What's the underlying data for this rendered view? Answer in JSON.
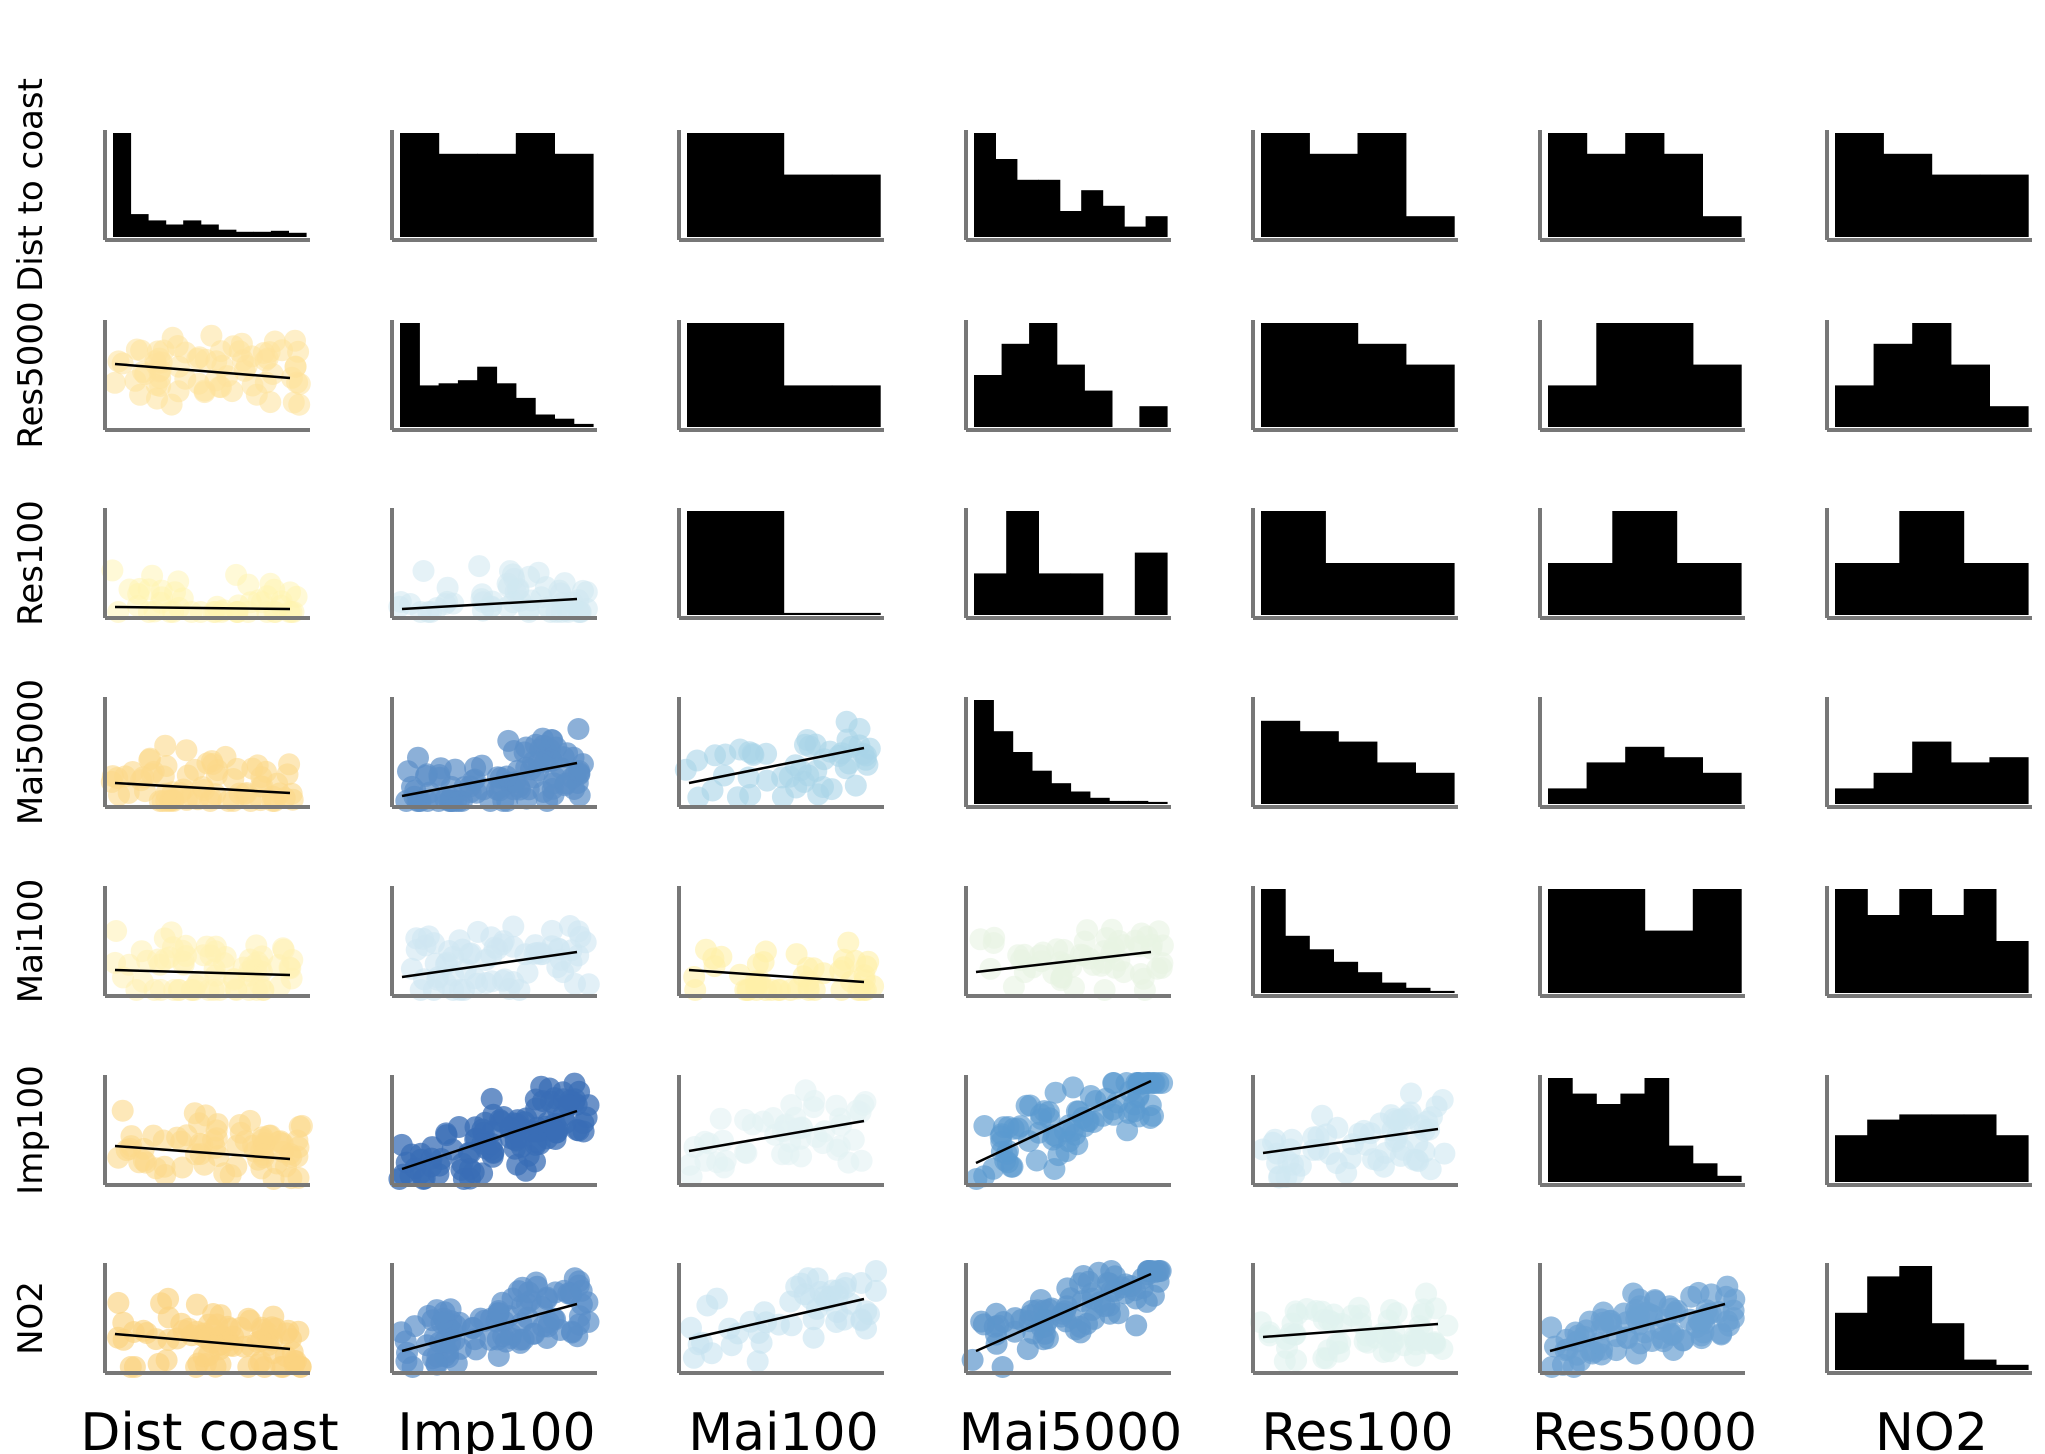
{
  "chart_data": {
    "type": "scatter-matrix",
    "variables": [
      "Dist coast",
      "Imp100",
      "Mai100",
      "Mai5000",
      "Res100",
      "Res5000",
      "NO2"
    ],
    "row_labels": [
      "Dist to coast",
      "Res5000",
      "Res100",
      "Mai5000",
      "Mai100",
      "Imp100",
      "NO2"
    ],
    "col_labels": [
      "Dist coast",
      "Imp100",
      "Mai100",
      "Mai5000",
      "Res100",
      "Res5000",
      "NO2"
    ],
    "histogram_color": "#000000",
    "trend_line_color": "#000000",
    "axis_color": "#777777",
    "histograms": [
      {
        "row": 0,
        "col": 0,
        "counts": [
          1.0,
          0.22,
          0.16,
          0.12,
          0.16,
          0.12,
          0.07,
          0.05,
          0.05,
          0.06,
          0.04
        ]
      },
      {
        "row": 0,
        "col": 1,
        "counts": [
          1.0,
          0.8,
          0.8,
          1.0,
          0.8
        ]
      },
      {
        "row": 0,
        "col": 2,
        "counts": [
          1.0,
          1.0,
          0.6,
          0.6
        ]
      },
      {
        "row": 0,
        "col": 3,
        "counts": [
          1.0,
          0.75,
          0.55,
          0.55,
          0.25,
          0.45,
          0.3,
          0.1,
          0.2
        ]
      },
      {
        "row": 0,
        "col": 4,
        "counts": [
          1.0,
          0.8,
          1.0,
          0.2
        ]
      },
      {
        "row": 0,
        "col": 5,
        "counts": [
          1.0,
          0.8,
          1.0,
          0.8,
          0.2
        ]
      },
      {
        "row": 0,
        "col": 6,
        "counts": [
          1.0,
          0.8,
          0.6,
          0.6
        ]
      },
      {
        "row": 1,
        "col": 1,
        "counts": [
          1.0,
          0.4,
          0.42,
          0.45,
          0.58,
          0.42,
          0.28,
          0.12,
          0.08,
          0.03
        ]
      },
      {
        "row": 1,
        "col": 2,
        "counts": [
          1.0,
          1.0,
          0.4,
          0.4
        ]
      },
      {
        "row": 1,
        "col": 3,
        "counts": [
          0.5,
          0.8,
          1.0,
          0.6,
          0.35,
          0.0,
          0.2
        ]
      },
      {
        "row": 1,
        "col": 4,
        "counts": [
          1.0,
          1.0,
          0.8,
          0.6
        ]
      },
      {
        "row": 1,
        "col": 5,
        "counts": [
          0.4,
          1.0,
          1.0,
          0.6
        ]
      },
      {
        "row": 1,
        "col": 6,
        "counts": [
          0.4,
          0.8,
          1.0,
          0.6,
          0.2
        ]
      },
      {
        "row": 2,
        "col": 2,
        "counts": [
          1.0,
          1.0,
          0.02,
          0.02
        ]
      },
      {
        "row": 2,
        "col": 3,
        "counts": [
          0.4,
          1.0,
          0.4,
          0.4,
          0.0,
          0.6
        ]
      },
      {
        "row": 2,
        "col": 4,
        "counts": [
          1.0,
          0.5,
          0.5
        ]
      },
      {
        "row": 2,
        "col": 5,
        "counts": [
          0.5,
          1.0,
          0.5
        ]
      },
      {
        "row": 2,
        "col": 6,
        "counts": [
          0.5,
          1.0,
          0.5
        ]
      },
      {
        "row": 3,
        "col": 3,
        "counts": [
          1.0,
          0.7,
          0.5,
          0.32,
          0.2,
          0.12,
          0.06,
          0.03,
          0.03,
          0.02
        ]
      },
      {
        "row": 3,
        "col": 4,
        "counts": [
          0.8,
          0.7,
          0.6,
          0.4,
          0.3
        ]
      },
      {
        "row": 3,
        "col": 5,
        "counts": [
          0.15,
          0.4,
          0.55,
          0.45,
          0.3
        ]
      },
      {
        "row": 3,
        "col": 6,
        "counts": [
          0.15,
          0.3,
          0.6,
          0.4,
          0.45
        ]
      },
      {
        "row": 4,
        "col": 4,
        "counts": [
          1.0,
          0.55,
          0.42,
          0.3,
          0.2,
          0.1,
          0.05,
          0.02
        ]
      },
      {
        "row": 4,
        "col": 5,
        "counts": [
          1.0,
          1.0,
          0.6,
          1.0
        ]
      },
      {
        "row": 4,
        "col": 6,
        "counts": [
          1.0,
          0.75,
          1.0,
          0.75,
          1.0,
          0.5
        ]
      },
      {
        "row": 5,
        "col": 5,
        "counts": [
          1.0,
          0.85,
          0.75,
          0.85,
          1.0,
          0.35,
          0.18,
          0.06
        ]
      },
      {
        "row": 5,
        "col": 6,
        "counts": [
          0.45,
          0.6,
          0.65,
          0.65,
          0.65,
          0.45
        ]
      },
      {
        "row": 6,
        "col": 6,
        "counts": [
          0.55,
          0.9,
          1.0,
          0.45,
          0.1,
          0.05
        ]
      }
    ],
    "scatters": [
      {
        "row": 1,
        "col": 0,
        "color": "#fde29a",
        "opacity": 0.55,
        "density": 1.0,
        "trend": [
          0.62,
          0.48
        ]
      },
      {
        "row": 2,
        "col": 0,
        "color": "#fff3b0",
        "opacity": 0.5,
        "density": 0.7,
        "trend": [
          0.07,
          0.05
        ]
      },
      {
        "row": 2,
        "col": 1,
        "color": "#cfe8f0",
        "opacity": 0.55,
        "density": 0.8,
        "trend": [
          0.05,
          0.15
        ]
      },
      {
        "row": 3,
        "col": 0,
        "color": "#fbd98a",
        "opacity": 0.6,
        "density": 1.0,
        "trend": [
          0.2,
          0.1
        ]
      },
      {
        "row": 3,
        "col": 1,
        "color": "#5b8fc8",
        "opacity": 0.7,
        "density": 1.4,
        "trend": [
          0.07,
          0.4
        ]
      },
      {
        "row": 3,
        "col": 2,
        "color": "#a9d3e8",
        "opacity": 0.6,
        "density": 0.7,
        "trend": [
          0.2,
          0.55
        ]
      },
      {
        "row": 4,
        "col": 0,
        "color": "#fff0b3",
        "opacity": 0.55,
        "density": 1.0,
        "trend": [
          0.22,
          0.17
        ]
      },
      {
        "row": 4,
        "col": 1,
        "color": "#cfe6f2",
        "opacity": 0.6,
        "density": 1.0,
        "trend": [
          0.15,
          0.4
        ]
      },
      {
        "row": 4,
        "col": 2,
        "color": "#fff0a8",
        "opacity": 0.6,
        "density": 0.7,
        "trend": [
          0.22,
          0.1
        ]
      },
      {
        "row": 4,
        "col": 3,
        "color": "#e7f4e2",
        "opacity": 0.6,
        "density": 0.8,
        "trend": [
          0.2,
          0.4
        ]
      },
      {
        "row": 5,
        "col": 0,
        "color": "#fbd98a",
        "opacity": 0.6,
        "density": 1.0,
        "trend": [
          0.35,
          0.22
        ]
      },
      {
        "row": 5,
        "col": 1,
        "color": "#3a6db5",
        "opacity": 0.75,
        "density": 1.6,
        "trend": [
          0.12,
          0.7
        ]
      },
      {
        "row": 5,
        "col": 2,
        "color": "#e2f2f4",
        "opacity": 0.6,
        "density": 0.7,
        "trend": [
          0.3,
          0.6
        ]
      },
      {
        "row": 5,
        "col": 3,
        "color": "#5b9ad0",
        "opacity": 0.65,
        "density": 1.2,
        "trend": [
          0.18,
          1.0
        ]
      },
      {
        "row": 5,
        "col": 4,
        "color": "#cfe8f2",
        "opacity": 0.6,
        "density": 0.9,
        "trend": [
          0.28,
          0.52
        ]
      },
      {
        "row": 6,
        "col": 0,
        "color": "#fbd37f",
        "opacity": 0.65,
        "density": 1.2,
        "trend": [
          0.35,
          0.2
        ]
      },
      {
        "row": 6,
        "col": 1,
        "color": "#5a8ec9",
        "opacity": 0.7,
        "density": 1.4,
        "trend": [
          0.18,
          0.65
        ]
      },
      {
        "row": 6,
        "col": 2,
        "color": "#c6e3f0",
        "opacity": 0.6,
        "density": 0.7,
        "trend": [
          0.3,
          0.7
        ]
      },
      {
        "row": 6,
        "col": 3,
        "color": "#5d95cc",
        "opacity": 0.7,
        "density": 1.2,
        "trend": [
          0.18,
          0.95
        ]
      },
      {
        "row": 6,
        "col": 4,
        "color": "#e0f1ef",
        "opacity": 0.6,
        "density": 0.9,
        "trend": [
          0.32,
          0.45
        ]
      },
      {
        "row": 6,
        "col": 5,
        "color": "#6a9fd2",
        "opacity": 0.7,
        "density": 1.3,
        "trend": [
          0.18,
          0.65
        ]
      }
    ]
  }
}
